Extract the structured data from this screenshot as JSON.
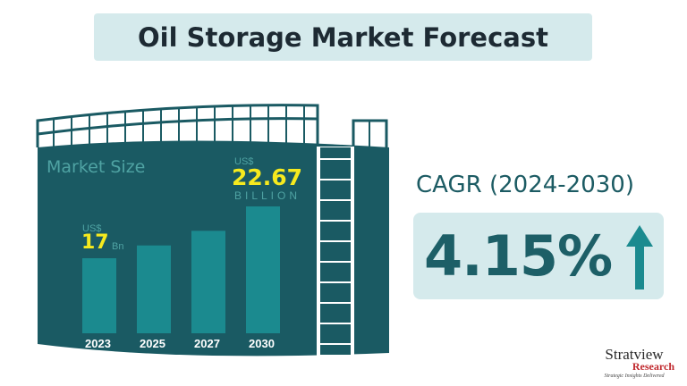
{
  "title": "Oil Storage Market Forecast",
  "chart_data": {
    "type": "bar",
    "title": "Market Size",
    "categories": [
      "2023",
      "2025",
      "2027",
      "2030"
    ],
    "values": [
      17,
      18.4,
      20.0,
      22.67
    ],
    "annotations": [
      {
        "category": "2023",
        "prefix": "US$",
        "value": "17",
        "unit": "Bn"
      },
      {
        "category": "2030",
        "prefix": "US$",
        "value": "22.67",
        "unit": "BILLION"
      }
    ],
    "colors": {
      "bar": "#1b8a8f",
      "tank": "#1a5a63",
      "highlight": "#f6ea1e"
    }
  },
  "cagr": {
    "label": "CAGR (2024-2030)",
    "value": "4.15%",
    "icon": "arrow-up-icon"
  },
  "logo": {
    "name": "Stratview",
    "sub": "Research",
    "tagline": "Strategic Insights Delivered"
  }
}
